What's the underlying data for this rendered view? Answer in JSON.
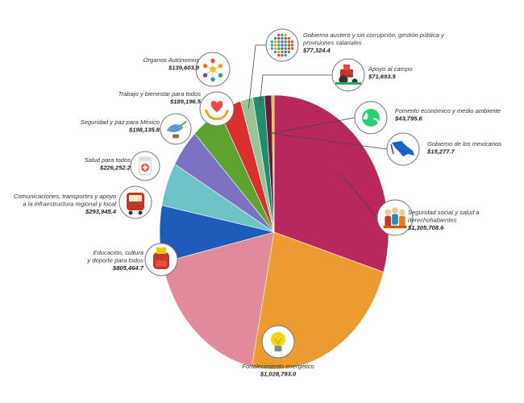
{
  "chart_data": {
    "type": "pie",
    "start_angle_deg": 0,
    "direction": "clockwise",
    "slices": [
      {
        "id": "seguridad-social",
        "label_lines": [
          "Seguridad social y salud a",
          "derechohabientes"
        ],
        "value_text": "$1,305,708.6",
        "value": 1305708.6,
        "color": "#b8285c",
        "icon": "family-icon"
      },
      {
        "id": "fortalecimiento",
        "label_lines": [
          "Fortalecimiento energético"
        ],
        "value_text": "$1,028,793.0",
        "value": 1028793.0,
        "color": "#eb9b30",
        "icon": "light-bulb-icon"
      },
      {
        "id": "educacion",
        "label_lines": [
          "Educación, cultura",
          "y deporte para todos"
        ],
        "value_text": "$805,464.7",
        "value": 805464.7,
        "color": "#e08a9a",
        "icon": "backpack-icon"
      },
      {
        "id": "comunicaciones",
        "label_lines": [
          "Comunicaciones, transportes y apoyo",
          "a la infraestructura regional y local"
        ],
        "value_text": "$293,945.4",
        "value": 293945.4,
        "color": "#1f5bb8",
        "icon": "train-icon"
      },
      {
        "id": "salud",
        "label_lines": [
          "Salud para todos"
        ],
        "value_text": "$226,252.2",
        "value": 226252.2,
        "color": "#6ec3c6",
        "icon": "medicine-icon"
      },
      {
        "id": "seguridad-paz",
        "label_lines": [
          "Seguridad y paz para México"
        ],
        "value_text": "$198,135.8",
        "value": 198135.8,
        "color": "#7b73c2",
        "icon": "dove-icon"
      },
      {
        "id": "trabajo",
        "label_lines": [
          "Trabajo y bienestar para todos"
        ],
        "value_text": "$189,196.5",
        "value": 189196.5,
        "color": "#5da332",
        "icon": "heart-hands-icon"
      },
      {
        "id": "organos",
        "label_lines": [
          "Órganos Autónomos"
        ],
        "value_text": "$139,603.9",
        "value": 139603.9,
        "color": "#d8302c",
        "icon": "network-icon"
      },
      {
        "id": "gobierno-austero",
        "label_lines": [
          "Gobierno austero y sin corrupción, gestión pública y",
          "provisiones salariales"
        ],
        "value_text": "$77,324.4",
        "value": 77324.4,
        "color": "#98c498",
        "icon": "crowd-icon"
      },
      {
        "id": "apoyo-campo",
        "label_lines": [
          "Apoyo al campo"
        ],
        "value_text": "$71,693.5",
        "value": 71693.5,
        "color": "#1f8e6c",
        "icon": "tractor-icon"
      },
      {
        "id": "fomento",
        "label_lines": [
          "Fomento económico y medio ambiente"
        ],
        "value_text": "$43,795.6",
        "value": 43795.6,
        "color": "#6a1c3c",
        "icon": "globe-icon"
      },
      {
        "id": "gobierno-mexicanos",
        "label_lines": [
          "Gobierno de los mexicanos"
        ],
        "value_text": "$15,277.7",
        "value": 15277.7,
        "color": "#e0b820",
        "icon": "mexico-map-icon"
      }
    ]
  }
}
